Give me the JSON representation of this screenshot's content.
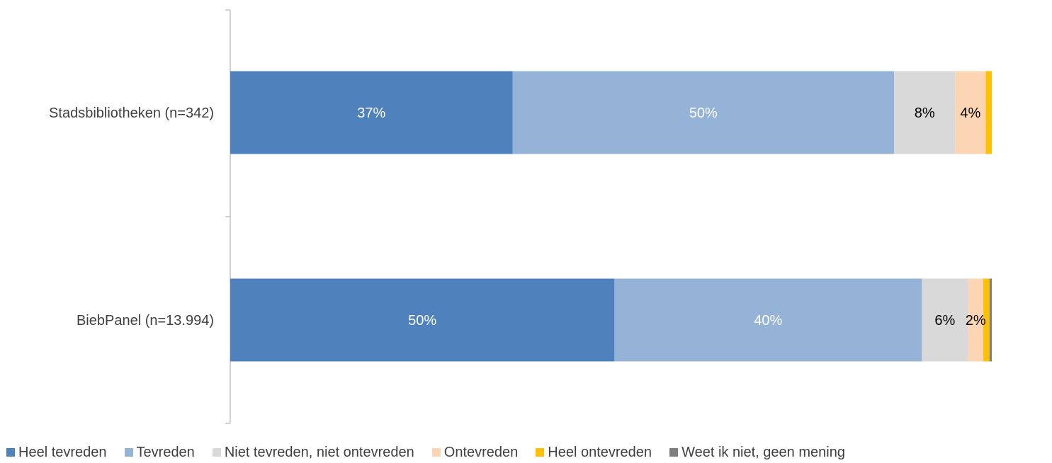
{
  "chart_data": {
    "type": "bar",
    "orientation": "horizontal",
    "stacked": "percent",
    "categories": [
      "Stadsbibliotheken (n=342)",
      "BiebPanel (n=13.994)"
    ],
    "series": [
      {
        "name": "Heel tevreden",
        "color": "#4f81bd",
        "values": [
          37,
          50
        ],
        "labels": [
          "37%",
          "50%"
        ],
        "label_color": "#ffffff"
      },
      {
        "name": "Tevreden",
        "color": "#95b3d7",
        "values": [
          50,
          40
        ],
        "labels": [
          "50%",
          "40%"
        ],
        "label_color": "#ffffff"
      },
      {
        "name": "Niet tevreden, niet ontevreden",
        "color": "#d9d9d9",
        "values": [
          8,
          6
        ],
        "labels": [
          "8%",
          "6%"
        ],
        "label_color": "#000000"
      },
      {
        "name": "Ontevreden",
        "color": "#fcd5b5",
        "values": [
          4,
          2
        ],
        "labels": [
          "4%",
          "2%"
        ],
        "label_color": "#000000"
      },
      {
        "name": "Heel ontevreden",
        "color": "#ffc000",
        "values": [
          0.8,
          0.8
        ],
        "labels": [
          "",
          ""
        ],
        "label_color": "#000000"
      },
      {
        "name": "Weet ik niet, geen mening",
        "color": "#7f7f7f",
        "values": [
          0,
          0.3
        ],
        "labels": [
          "",
          ""
        ],
        "label_color": "#000000"
      }
    ],
    "xlim": [
      0,
      100
    ],
    "grid": false,
    "legend_position": "bottom"
  }
}
